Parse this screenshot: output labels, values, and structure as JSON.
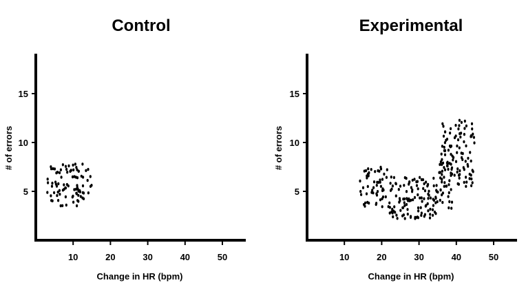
{
  "chart_data": [
    {
      "type": "scatter",
      "title": "Control",
      "xlabel": "Change in HR (bpm)",
      "ylabel": "# of errors",
      "xticks": [
        10,
        20,
        30,
        40,
        50
      ],
      "yticks": [
        5,
        10,
        15
      ],
      "xlim": [
        0,
        55
      ],
      "ylim": [
        0,
        19
      ],
      "grid": false,
      "clusters": [
        {
          "x_range": [
            3,
            15
          ],
          "y_range": [
            3.5,
            7.8
          ],
          "count": 90
        }
      ]
    },
    {
      "type": "scatter",
      "title": "Experimental",
      "xlabel": "Change in HR (bpm)",
      "ylabel": "# of errors",
      "xticks": [
        10,
        20,
        30,
        40,
        50
      ],
      "yticks": [
        5,
        10,
        15
      ],
      "xlim": [
        0,
        55
      ],
      "ylim": [
        0,
        19
      ],
      "grid": false,
      "clusters": [
        {
          "x_range": [
            14,
            22
          ],
          "y_range": [
            3.3,
            7.5
          ],
          "count": 55
        },
        {
          "x_range": [
            22,
            35
          ],
          "y_range": [
            2.2,
            6.5
          ],
          "count": 120
        },
        {
          "x_range": [
            35,
            39
          ],
          "y_range": [
            3.2,
            8.8
          ],
          "count": 40
        },
        {
          "x_range": [
            36,
            45
          ],
          "y_range": [
            5.5,
            12.5
          ],
          "count": 95
        }
      ]
    }
  ]
}
